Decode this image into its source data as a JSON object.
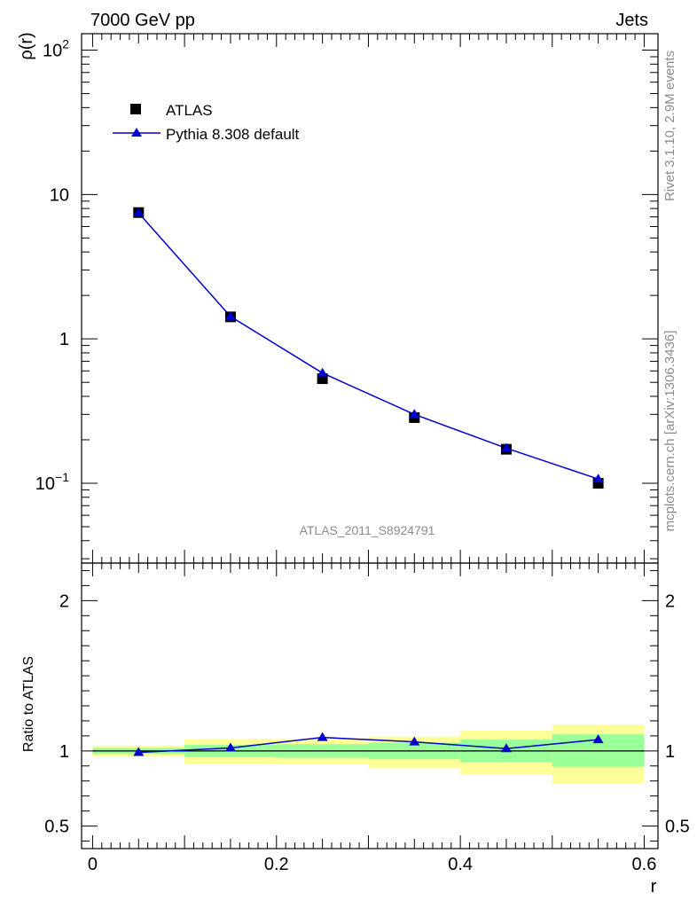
{
  "header": {
    "left": "7000 GeV pp",
    "right": "Jets"
  },
  "side_labels": {
    "top": "Rivet 3.1.10,  2.9M events",
    "bottom": "mcplots.cern.ch [arXiv:1306.3436]"
  },
  "chart_data": {
    "type": "scatter",
    "analysis_label": "ATLAS_2011_S8924791",
    "x": [
      0.05,
      0.15,
      0.25,
      0.35,
      0.45,
      0.55
    ],
    "bin_edges": [
      0,
      0.1,
      0.2,
      0.3,
      0.4,
      0.5,
      0.6
    ],
    "series": [
      {
        "name": "ATLAS",
        "marker": "square",
        "color": "#000000",
        "values": [
          7.5,
          1.42,
          0.53,
          0.285,
          0.172,
          0.1
        ]
      },
      {
        "name": "Pythia 8.308 default",
        "marker": "triangle",
        "color": "#0000cc",
        "values": [
          7.45,
          1.43,
          0.58,
          0.3,
          0.175,
          0.107
        ]
      }
    ],
    "main": {
      "ylabel": "ρ(r)",
      "yscale": "log",
      "ylim": [
        0.028,
        130
      ],
      "yticks": [
        {
          "value": 100,
          "label": "10",
          "sup": "2"
        },
        {
          "value": 10,
          "label": "10",
          "sup": ""
        },
        {
          "value": 1,
          "label": "1",
          "sup": ""
        },
        {
          "value": 0.1,
          "label": "10",
          "sup": "−1"
        }
      ]
    },
    "ratio": {
      "ylabel": "Ratio to ATLAS",
      "ylim": [
        0.35,
        2.25
      ],
      "yticks": [
        {
          "value": 2,
          "label": "2"
        },
        {
          "value": 1,
          "label": "1"
        },
        {
          "value": 0.5,
          "label": "0.5"
        }
      ],
      "values": [
        0.99,
        1.02,
        1.09,
        1.06,
        1.015,
        1.075
      ],
      "band_stat": [
        [
          0.98,
          1.02
        ],
        [
          0.96,
          1.04
        ],
        [
          0.955,
          1.045
        ],
        [
          0.945,
          1.055
        ],
        [
          0.925,
          1.075
        ],
        [
          0.895,
          1.11
        ]
      ],
      "band_total": [
        [
          0.965,
          1.035
        ],
        [
          0.915,
          1.08
        ],
        [
          0.91,
          1.08
        ],
        [
          0.885,
          1.095
        ],
        [
          0.84,
          1.135
        ],
        [
          0.78,
          1.175
        ]
      ],
      "colors": {
        "stat": "#99ff99",
        "total": "#ffff99"
      }
    },
    "xaxis": {
      "xlabel": "r",
      "xlim": [
        -0.012,
        0.615
      ],
      "ticks": [
        {
          "value": 0,
          "label": "0"
        },
        {
          "value": 0.2,
          "label": "0.2"
        },
        {
          "value": 0.4,
          "label": "0.4"
        },
        {
          "value": 0.6,
          "label": "0.6"
        }
      ]
    },
    "legend": {
      "placement": "top-left"
    }
  }
}
